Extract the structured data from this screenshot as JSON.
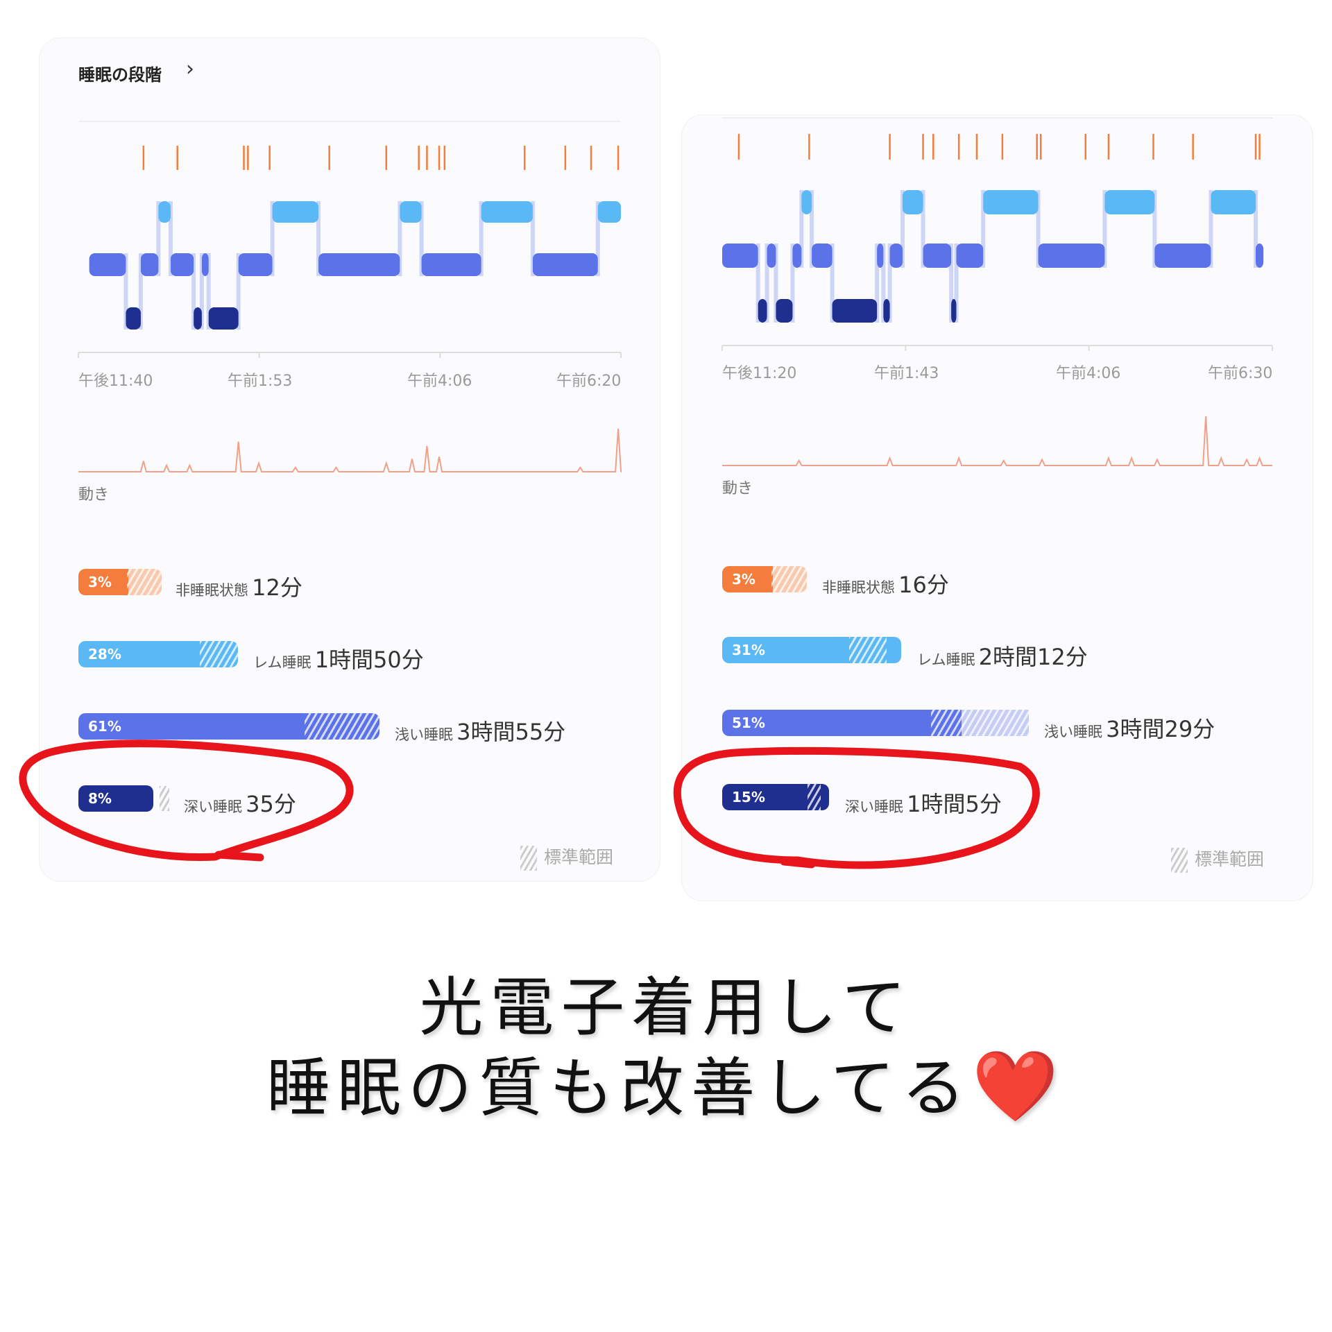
{
  "panels": [
    {
      "title": "睡眠の段階",
      "x_ticks": [
        "午後11:40",
        "午前1:53",
        "午前4:06",
        "午前6:20"
      ],
      "time_range": [
        "23:40",
        "06:20"
      ],
      "movement_label": "動き",
      "stages": [
        [
          "light",
          "23:48",
          "00:15"
        ],
        [
          "deep",
          "00:15",
          "00:26"
        ],
        [
          "light",
          "00:26",
          "00:39"
        ],
        [
          "rem",
          "00:39",
          "00:48"
        ],
        [
          "light",
          "00:48",
          "01:05"
        ],
        [
          "deep",
          "01:05",
          "01:11"
        ],
        [
          "light",
          "01:11",
          "01:16"
        ],
        [
          "deep",
          "01:16",
          "01:38"
        ],
        [
          "light",
          "01:38",
          "02:03"
        ],
        [
          "rem",
          "02:03",
          "02:37"
        ],
        [
          "light",
          "02:37",
          "03:37"
        ],
        [
          "rem",
          "03:37",
          "03:53"
        ],
        [
          "light",
          "03:53",
          "04:37"
        ],
        [
          "rem",
          "04:37",
          "05:15"
        ],
        [
          "light",
          "05:15",
          "06:03"
        ],
        [
          "rem",
          "06:03",
          "06:20"
        ]
      ],
      "awake_marks": [
        "00:28",
        "00:53",
        "01:42",
        "01:45",
        "02:01",
        "02:45",
        "03:27",
        "03:51",
        "03:57",
        "04:06",
        "04:10",
        "05:09",
        "05:39",
        "05:58",
        "06:18"
      ],
      "movement_peaks": [
        [
          "00:28",
          0.25
        ],
        [
          "00:45",
          0.15
        ],
        [
          "01:02",
          0.15
        ],
        [
          "01:38",
          0.7
        ],
        [
          "01:53",
          0.2
        ],
        [
          "02:20",
          0.1
        ],
        [
          "02:50",
          0.1
        ],
        [
          "03:27",
          0.2
        ],
        [
          "03:46",
          0.3
        ],
        [
          "03:57",
          0.6
        ],
        [
          "04:06",
          0.35
        ],
        [
          "05:50",
          0.1
        ],
        [
          "06:18",
          1.0
        ]
      ],
      "legend": [
        {
          "stage": "awake",
          "pct": "3%",
          "name": "非睡眠状態",
          "duration": "12分"
        },
        {
          "stage": "rem",
          "pct": "28%",
          "name": "レム睡眠",
          "duration": "1時間50分"
        },
        {
          "stage": "light",
          "pct": "61%",
          "name": "浅い睡眠",
          "duration": "3時間55分"
        },
        {
          "stage": "deep",
          "pct": "8%",
          "name": "深い睡眠",
          "duration": "35分"
        }
      ],
      "normal_range_label": "標準範囲"
    },
    {
      "x_ticks": [
        "午後11:20",
        "午前1:43",
        "午前4:06",
        "午前6:30"
      ],
      "time_range": [
        "23:20",
        "06:30"
      ],
      "movement_label": "動き",
      "stages": [
        [
          "light",
          "23:20",
          "23:48"
        ],
        [
          "deep",
          "23:48",
          "23:55"
        ],
        [
          "light",
          "23:55",
          "00:02"
        ],
        [
          "deep",
          "00:02",
          "00:15"
        ],
        [
          "light",
          "00:15",
          "00:22"
        ],
        [
          "rem",
          "00:22",
          "00:30"
        ],
        [
          "light",
          "00:30",
          "00:46"
        ],
        [
          "deep",
          "00:46",
          "01:21"
        ],
        [
          "light",
          "01:21",
          "01:26"
        ],
        [
          "deep",
          "01:26",
          "01:31"
        ],
        [
          "light",
          "01:31",
          "01:41"
        ],
        [
          "rem",
          "01:41",
          "01:57"
        ],
        [
          "light",
          "01:57",
          "02:19"
        ],
        [
          "deep",
          "02:19",
          "02:23"
        ],
        [
          "light",
          "02:23",
          "02:44"
        ],
        [
          "rem",
          "02:44",
          "03:27"
        ],
        [
          "light",
          "03:27",
          "04:19"
        ],
        [
          "rem",
          "04:19",
          "04:58"
        ],
        [
          "light",
          "04:58",
          "05:42"
        ],
        [
          "rem",
          "05:42",
          "06:17"
        ],
        [
          "light",
          "06:17",
          "06:23"
        ]
      ],
      "awake_marks": [
        "23:33",
        "00:28",
        "01:31",
        "01:57",
        "02:05",
        "02:25",
        "02:39",
        "02:59",
        "03:26",
        "03:29",
        "04:04",
        "04:22",
        "04:57",
        "05:28",
        "06:17",
        "06:20"
      ],
      "movement_peaks": [
        [
          "00:20",
          0.1
        ],
        [
          "01:31",
          0.15
        ],
        [
          "02:25",
          0.15
        ],
        [
          "03:00",
          0.1
        ],
        [
          "03:30",
          0.12
        ],
        [
          "04:22",
          0.15
        ],
        [
          "04:40",
          0.15
        ],
        [
          "05:00",
          0.12
        ],
        [
          "05:38",
          1.0
        ],
        [
          "05:50",
          0.15
        ],
        [
          "06:10",
          0.12
        ],
        [
          "06:20",
          0.15
        ]
      ],
      "legend": [
        {
          "stage": "awake",
          "pct": "3%",
          "name": "非睡眠状態",
          "duration": "16分"
        },
        {
          "stage": "rem",
          "pct": "31%",
          "name": "レム睡眠",
          "duration": "2時間12分"
        },
        {
          "stage": "light",
          "pct": "51%",
          "name": "浅い睡眠",
          "duration": "3時間29分"
        },
        {
          "stage": "deep",
          "pct": "15%",
          "name": "深い睡眠",
          "duration": "1時間5分"
        }
      ],
      "normal_range_label": "標準範囲"
    }
  ],
  "colors": {
    "awake": "#f47c3c",
    "rem": "#5ab8f5",
    "light": "#5b72e8",
    "deep": "#1f2f8f",
    "annotation": "#e8141b",
    "movement": "#f0a08a"
  },
  "caption": {
    "line1": "光電子着用して",
    "line2": "睡眠の質も改善してる",
    "emoji": "❤️"
  }
}
